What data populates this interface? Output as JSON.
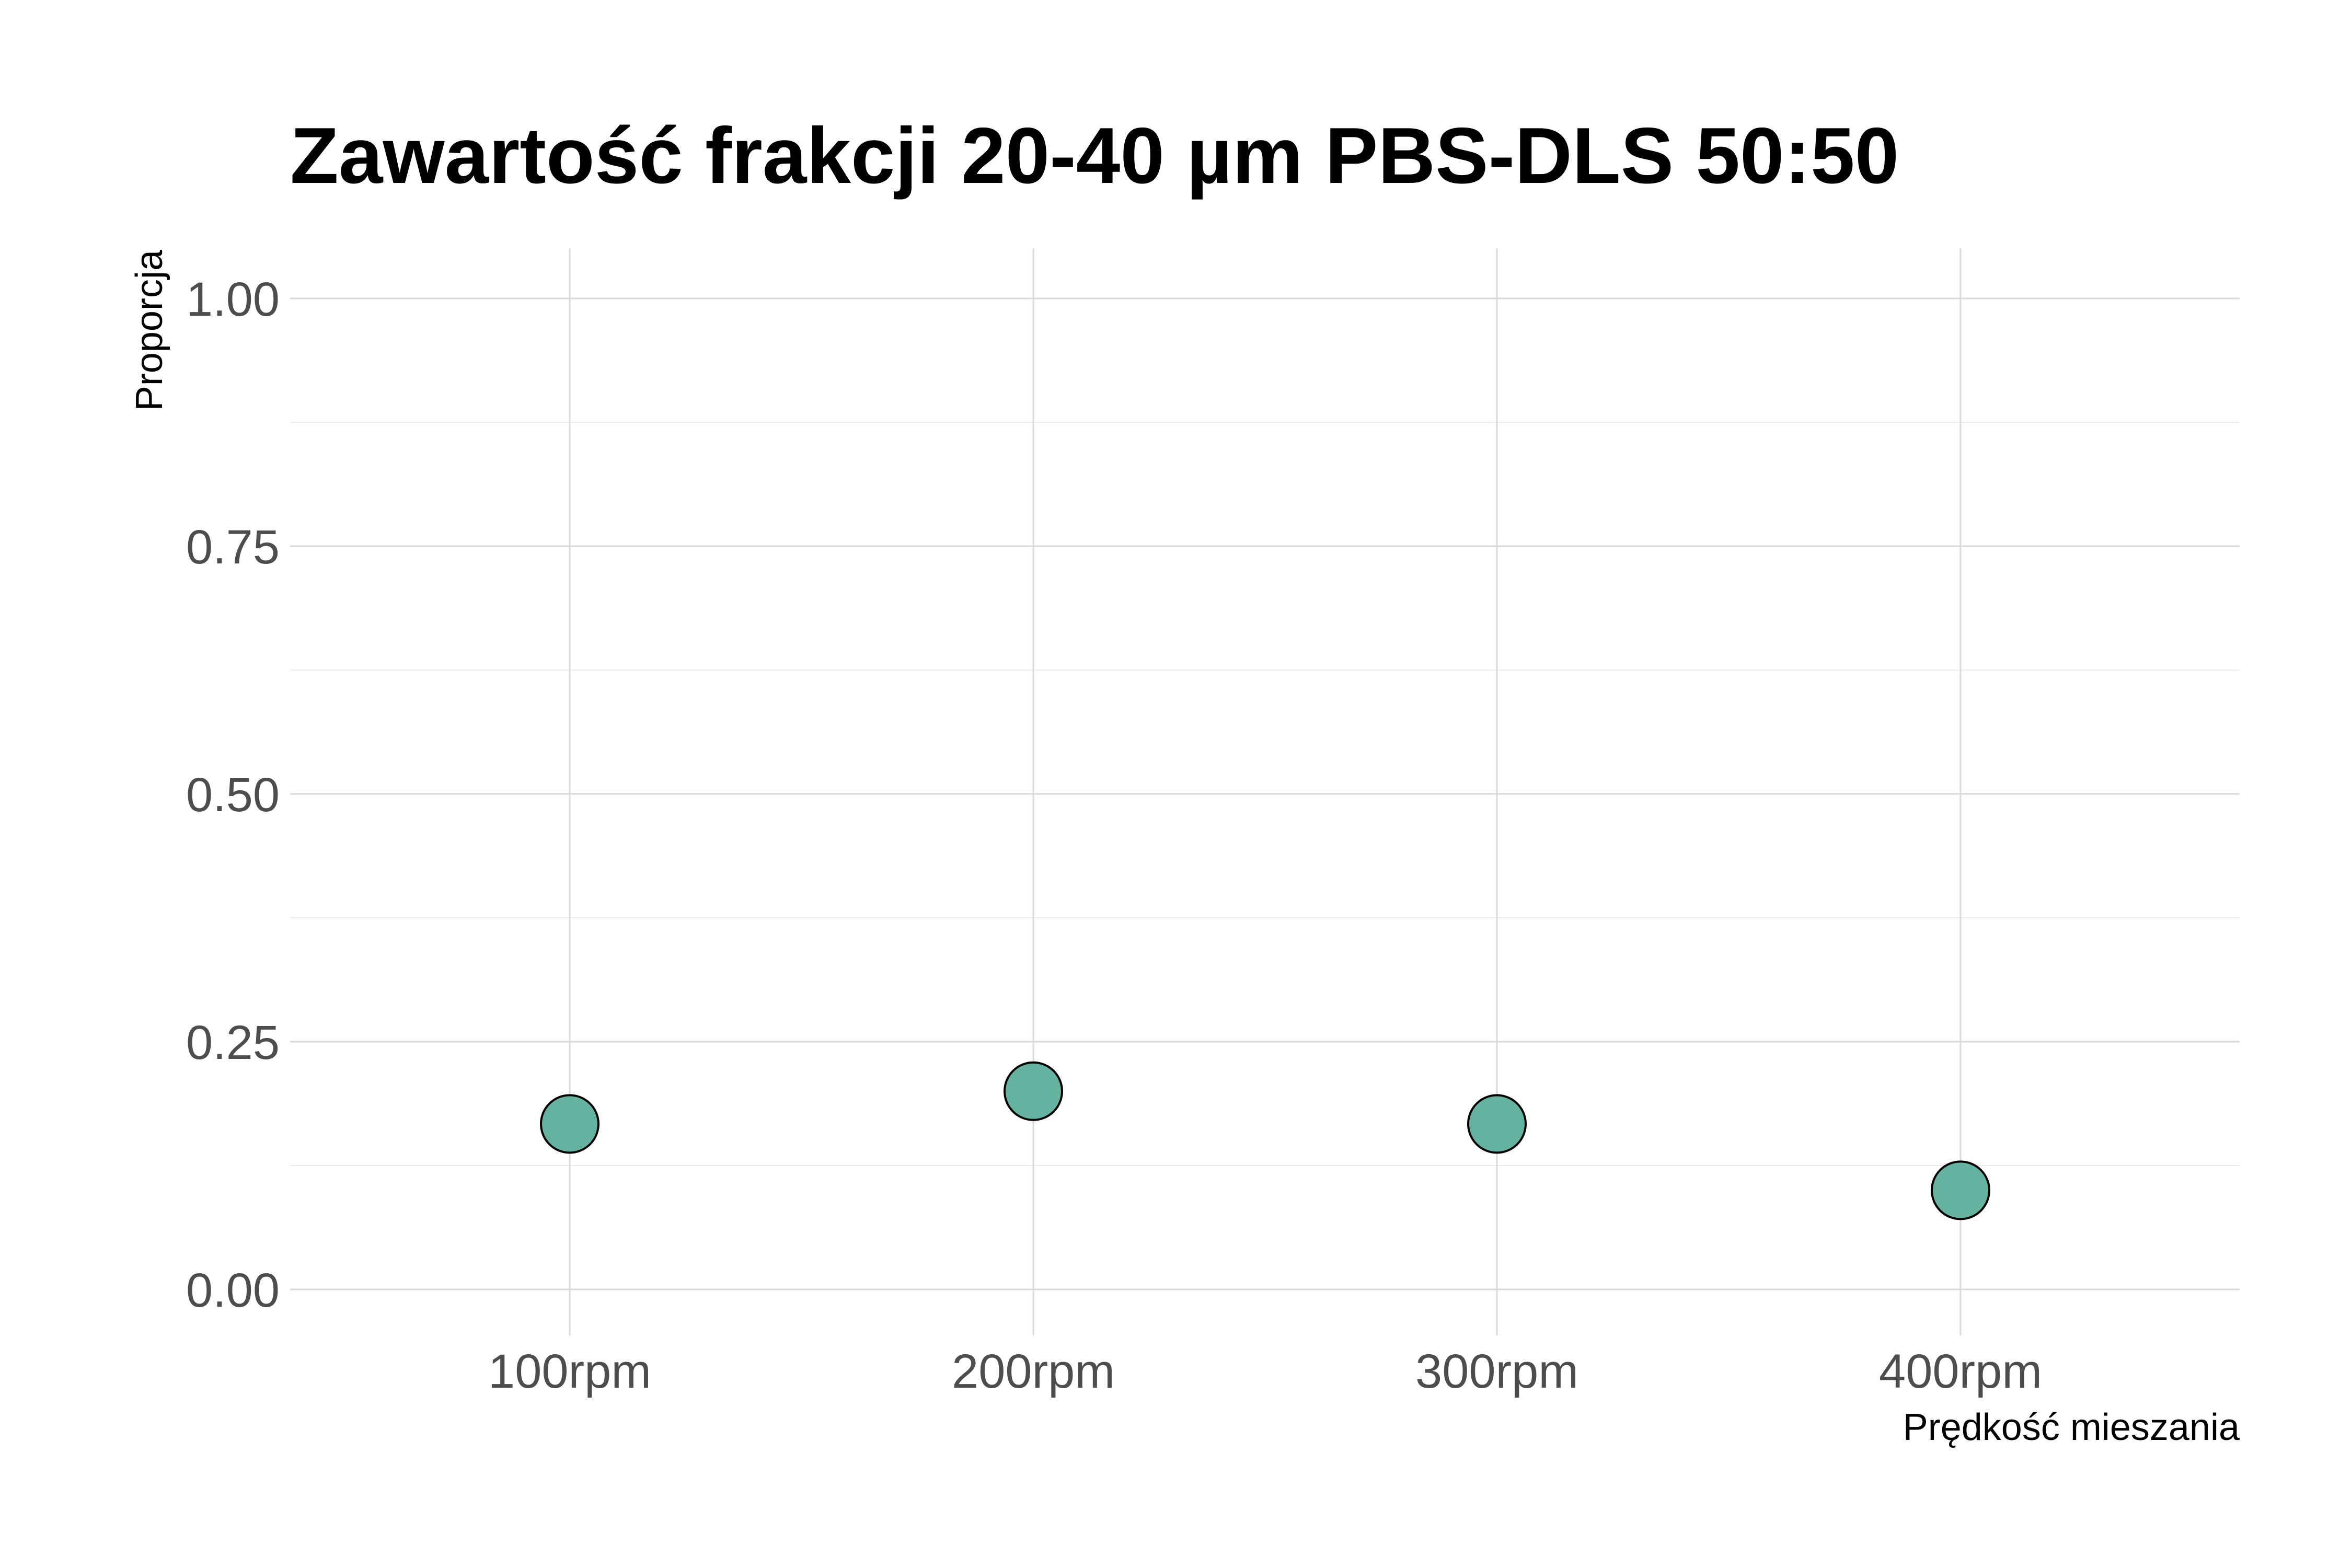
{
  "chart_data": {
    "type": "scatter",
    "title": "Zawartość frakcji 20-40 µm PBS-DLS 50:50",
    "xlabel": "Prędkość mieszania",
    "ylabel": "Proporcja",
    "categories": [
      "100rpm",
      "200rpm",
      "300rpm",
      "400rpm"
    ],
    "values": [
      0.167,
      0.2,
      0.167,
      0.1
    ],
    "ylim": [
      -0.02,
      1.05
    ],
    "yticks": [
      0.0,
      0.25,
      0.5,
      0.75,
      1.0
    ],
    "ytick_labels": [
      "0.00",
      "0.25",
      "0.50",
      "0.75",
      "1.00"
    ],
    "grid": true,
    "legend": "none",
    "point_fill": "#66b2a0",
    "point_stroke": "#000000"
  }
}
